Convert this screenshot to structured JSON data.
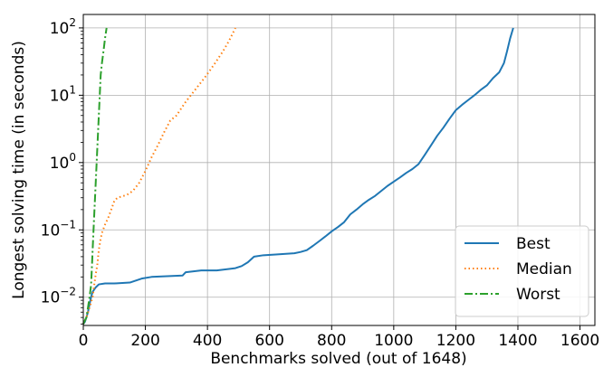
{
  "chart_data": {
    "type": "line",
    "xlabel": "Benchmarks solved (out of 1648)",
    "ylabel": "Longest solving time (in seconds)",
    "xlim": [
      0,
      1648
    ],
    "ylim_log10": [
      -2.42,
      2.2
    ],
    "y_scale": "log",
    "grid": true,
    "legend_position": "bottom-right",
    "x_ticks": [
      0,
      200,
      400,
      600,
      800,
      1000,
      1200,
      1400,
      1600
    ],
    "x_tick_labels": [
      "0",
      "200",
      "400",
      "600",
      "800",
      "1000",
      "1200",
      "1400",
      "1600"
    ],
    "y_ticks": [
      0.01,
      0.1,
      1,
      10,
      100
    ],
    "y_tick_labels": [
      {
        "base": "10",
        "exp": "−2"
      },
      {
        "base": "10",
        "exp": "−1"
      },
      {
        "base": "10",
        "exp": "0"
      },
      {
        "base": "10",
        "exp": "1"
      },
      {
        "base": "10",
        "exp": "2"
      }
    ],
    "series": [
      {
        "name": "Best",
        "color": "#1f77b4",
        "dash": "solid",
        "points": [
          [
            0,
            0.004
          ],
          [
            5,
            0.0043
          ],
          [
            10,
            0.005
          ],
          [
            15,
            0.006
          ],
          [
            20,
            0.0078
          ],
          [
            25,
            0.01
          ],
          [
            30,
            0.012
          ],
          [
            40,
            0.014
          ],
          [
            50,
            0.0155
          ],
          [
            70,
            0.016
          ],
          [
            100,
            0.016
          ],
          [
            150,
            0.0165
          ],
          [
            190,
            0.019
          ],
          [
            220,
            0.02
          ],
          [
            320,
            0.021
          ],
          [
            330,
            0.0235
          ],
          [
            380,
            0.025
          ],
          [
            430,
            0.025
          ],
          [
            490,
            0.027
          ],
          [
            510,
            0.029
          ],
          [
            530,
            0.033
          ],
          [
            550,
            0.04
          ],
          [
            580,
            0.042
          ],
          [
            620,
            0.043
          ],
          [
            680,
            0.045
          ],
          [
            700,
            0.047
          ],
          [
            720,
            0.05
          ],
          [
            740,
            0.058
          ],
          [
            760,
            0.068
          ],
          [
            780,
            0.08
          ],
          [
            800,
            0.095
          ],
          [
            820,
            0.11
          ],
          [
            840,
            0.13
          ],
          [
            860,
            0.17
          ],
          [
            880,
            0.2
          ],
          [
            900,
            0.24
          ],
          [
            920,
            0.28
          ],
          [
            940,
            0.32
          ],
          [
            960,
            0.38
          ],
          [
            980,
            0.45
          ],
          [
            1000,
            0.52
          ],
          [
            1020,
            0.6
          ],
          [
            1040,
            0.7
          ],
          [
            1060,
            0.8
          ],
          [
            1080,
            0.95
          ],
          [
            1100,
            1.3
          ],
          [
            1120,
            1.8
          ],
          [
            1140,
            2.5
          ],
          [
            1160,
            3.3
          ],
          [
            1180,
            4.5
          ],
          [
            1200,
            6.0
          ],
          [
            1220,
            7.2
          ],
          [
            1240,
            8.5
          ],
          [
            1260,
            10
          ],
          [
            1280,
            12
          ],
          [
            1300,
            14
          ],
          [
            1320,
            18
          ],
          [
            1340,
            22
          ],
          [
            1355,
            30
          ],
          [
            1365,
            45
          ],
          [
            1375,
            70
          ],
          [
            1385,
            100
          ]
        ]
      },
      {
        "name": "Median",
        "color": "#ff7f0e",
        "dash": "dotted",
        "points": [
          [
            0,
            0.004
          ],
          [
            10,
            0.005
          ],
          [
            20,
            0.007
          ],
          [
            30,
            0.01
          ],
          [
            35,
            0.015
          ],
          [
            40,
            0.022
          ],
          [
            45,
            0.03
          ],
          [
            50,
            0.05
          ],
          [
            55,
            0.07
          ],
          [
            60,
            0.09
          ],
          [
            70,
            0.12
          ],
          [
            80,
            0.15
          ],
          [
            90,
            0.2
          ],
          [
            100,
            0.27
          ],
          [
            110,
            0.3
          ],
          [
            120,
            0.31
          ],
          [
            140,
            0.33
          ],
          [
            160,
            0.38
          ],
          [
            180,
            0.5
          ],
          [
            200,
            0.75
          ],
          [
            220,
            1.2
          ],
          [
            240,
            1.8
          ],
          [
            260,
            2.8
          ],
          [
            280,
            4.2
          ],
          [
            300,
            5.0
          ],
          [
            330,
            8.0
          ],
          [
            360,
            12
          ],
          [
            390,
            18
          ],
          [
            420,
            28
          ],
          [
            450,
            45
          ],
          [
            470,
            65
          ],
          [
            490,
            100
          ]
        ]
      },
      {
        "name": "Worst",
        "color": "#2ca02c",
        "dash": "dashdot",
        "points": [
          [
            0,
            0.004
          ],
          [
            5,
            0.0045
          ],
          [
            10,
            0.005
          ],
          [
            15,
            0.007
          ],
          [
            20,
            0.01
          ],
          [
            25,
            0.015
          ],
          [
            28,
            0.03
          ],
          [
            30,
            0.05
          ],
          [
            33,
            0.1
          ],
          [
            36,
            0.2
          ],
          [
            40,
            0.5
          ],
          [
            43,
            1.0
          ],
          [
            46,
            2.0
          ],
          [
            50,
            5.0
          ],
          [
            53,
            10
          ],
          [
            56,
            20
          ],
          [
            60,
            30
          ],
          [
            65,
            45
          ],
          [
            70,
            70
          ],
          [
            75,
            100
          ]
        ]
      }
    ]
  }
}
